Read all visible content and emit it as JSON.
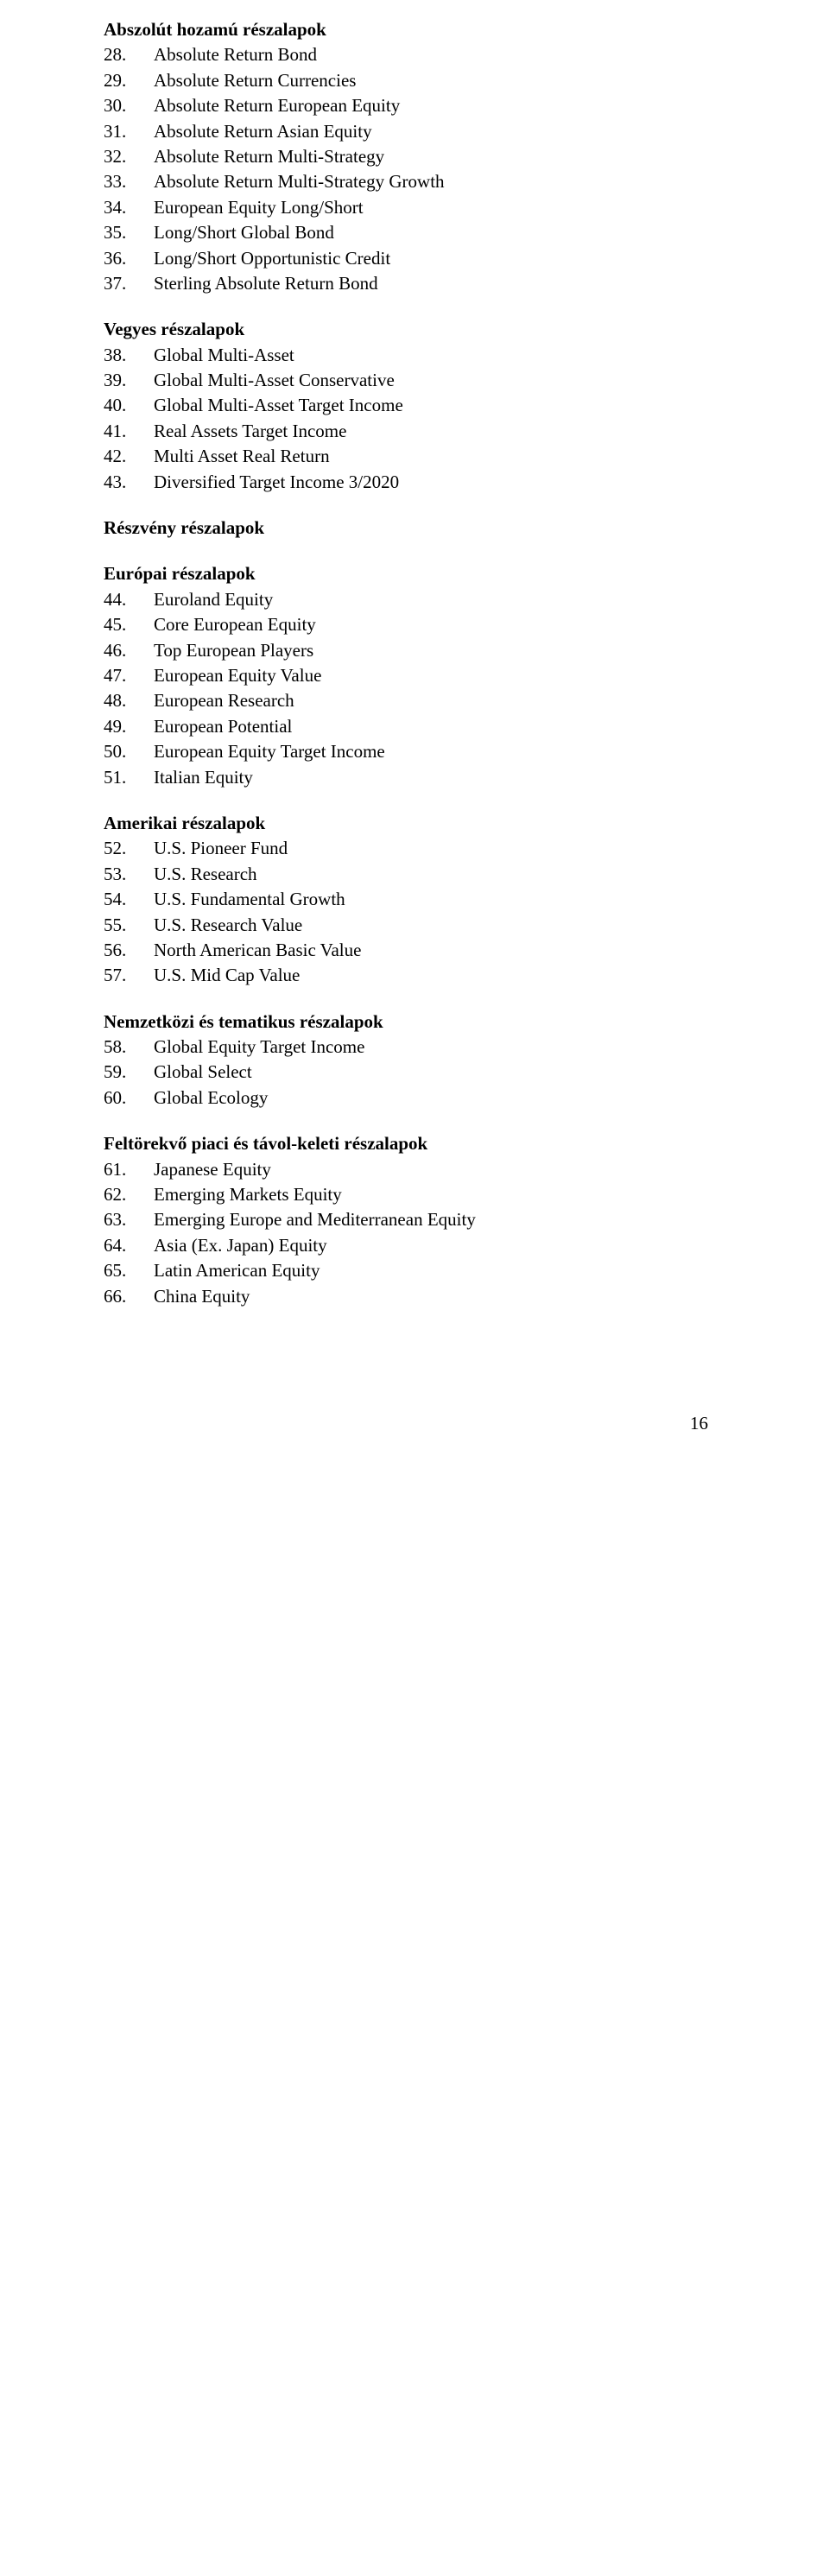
{
  "page": {
    "number": "16"
  },
  "sections": [
    {
      "title": "Abszolút hozamú részalapok",
      "first": true,
      "items": [
        {
          "num": "28.",
          "label": "Absolute Return Bond"
        },
        {
          "num": "29.",
          "label": "Absolute Return Currencies"
        },
        {
          "num": "30.",
          "label": "Absolute Return European Equity"
        },
        {
          "num": "31.",
          "label": "Absolute Return Asian Equity"
        },
        {
          "num": "32.",
          "label": "Absolute Return Multi-Strategy"
        },
        {
          "num": "33.",
          "label": "Absolute Return Multi-Strategy Growth"
        },
        {
          "num": "34.",
          "label": "European Equity Long/Short"
        },
        {
          "num": "35.",
          "label": "Long/Short Global Bond"
        },
        {
          "num": "36.",
          "label": "Long/Short Opportunistic Credit"
        },
        {
          "num": "37.",
          "label": "Sterling Absolute Return Bond"
        }
      ]
    },
    {
      "title": "Vegyes részalapok",
      "items": [
        {
          "num": "38.",
          "label": "Global Multi-Asset"
        },
        {
          "num": "39.",
          "label": "Global Multi-Asset Conservative"
        },
        {
          "num": "40.",
          "label": "Global Multi-Asset Target Income"
        },
        {
          "num": "41.",
          "label": "Real Assets Target Income"
        },
        {
          "num": "42.",
          "label": "Multi Asset Real Return"
        },
        {
          "num": "43.",
          "label": "Diversified Target Income 3/2020"
        }
      ]
    },
    {
      "title": "Részvény részalapok",
      "items": []
    },
    {
      "title": "Európai részalapok",
      "items": [
        {
          "num": "44.",
          "label": "Euroland Equity"
        },
        {
          "num": "45.",
          "label": "Core European Equity"
        },
        {
          "num": "46.",
          "label": "Top European Players"
        },
        {
          "num": "47.",
          "label": "European Equity Value"
        },
        {
          "num": "48.",
          "label": "European Research"
        },
        {
          "num": "49.",
          "label": "European Potential"
        },
        {
          "num": "50.",
          "label": "European Equity Target Income"
        },
        {
          "num": "51.",
          "label": "Italian Equity"
        }
      ]
    },
    {
      "title": "Amerikai részalapok",
      "items": [
        {
          "num": "52.",
          "label": "U.S. Pioneer Fund"
        },
        {
          "num": "53.",
          "label": "U.S. Research"
        },
        {
          "num": "54.",
          "label": "U.S. Fundamental Growth"
        },
        {
          "num": "55.",
          "label": "U.S. Research Value"
        },
        {
          "num": "56.",
          "label": "North American Basic Value"
        },
        {
          "num": "57.",
          "label": "U.S. Mid Cap Value"
        }
      ]
    },
    {
      "title": "Nemzetközi és tematikus részalapok",
      "items": [
        {
          "num": "58.",
          "label": "Global Equity Target Income"
        },
        {
          "num": "59.",
          "label": "Global Select"
        },
        {
          "num": "60.",
          "label": "Global Ecology"
        }
      ]
    },
    {
      "title": "Feltörekvő piaci és távol-keleti részalapok",
      "items": [
        {
          "num": "61.",
          "label": "Japanese Equity"
        },
        {
          "num": "62.",
          "label": "Emerging Markets Equity"
        },
        {
          "num": "63.",
          "label": "Emerging Europe and Mediterranean Equity"
        },
        {
          "num": "64.",
          "label": "Asia (Ex. Japan) Equity"
        },
        {
          "num": "65.",
          "label": "Latin American Equity"
        },
        {
          "num": "66.",
          "label": "China Equity"
        }
      ]
    }
  ]
}
